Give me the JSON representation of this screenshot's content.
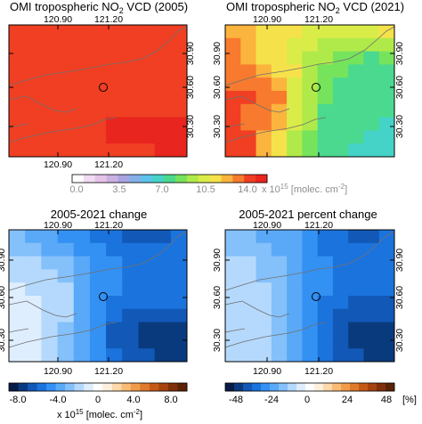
{
  "panels": [
    {
      "id": "no2-2005",
      "title_pre": "OMI tropospheric NO",
      "title_sub": "2",
      "title_post": " VCD (2005)",
      "grid": [
        [
          16,
          16,
          16,
          16,
          16,
          16,
          16,
          16,
          16,
          16,
          16
        ],
        [
          16,
          16,
          16,
          16,
          16,
          16,
          16,
          16,
          16,
          16,
          16
        ],
        [
          16,
          16,
          16,
          16,
          16,
          16,
          16,
          16,
          16,
          16,
          16
        ],
        [
          16,
          16,
          16,
          16,
          16,
          16,
          16,
          16,
          16,
          16,
          16
        ],
        [
          16,
          16,
          16,
          16,
          16,
          16,
          16,
          16,
          16,
          16,
          16
        ],
        [
          16,
          16,
          16,
          16,
          16,
          16,
          16,
          16,
          16,
          16,
          16
        ],
        [
          16,
          16,
          16,
          16,
          16,
          16,
          16,
          16,
          16,
          16,
          16
        ],
        [
          16,
          16,
          16,
          16,
          16,
          16,
          17,
          17,
          17,
          17,
          17
        ],
        [
          16,
          16,
          16,
          16,
          16,
          16,
          17,
          17,
          17,
          17,
          17
        ],
        [
          16,
          16,
          16,
          16,
          16,
          16,
          16,
          16,
          16,
          17,
          17
        ]
      ]
    },
    {
      "id": "no2-2021",
      "title_pre": "OMI tropospheric NO",
      "title_sub": "2",
      "title_post": " VCD (2021)",
      "grid": [
        [
          14,
          14,
          13,
          13,
          13,
          12,
          12,
          12,
          12,
          12,
          13
        ],
        [
          15,
          14,
          13,
          13,
          12,
          12,
          11,
          11,
          11,
          11,
          11
        ],
        [
          15,
          14,
          13,
          13,
          12,
          11,
          11,
          10,
          10,
          9,
          10
        ],
        [
          15,
          15,
          14,
          13,
          13,
          11,
          10,
          10,
          9,
          9,
          9
        ],
        [
          15,
          15,
          15,
          14,
          12,
          11,
          10,
          9,
          9,
          9,
          9
        ],
        [
          16,
          16,
          15,
          15,
          12,
          11,
          10,
          9,
          9,
          9,
          9
        ],
        [
          16,
          15,
          15,
          14,
          12,
          11,
          9,
          9,
          9,
          9,
          9
        ],
        [
          16,
          15,
          15,
          14,
          12,
          11,
          9,
          9,
          9,
          9,
          8
        ],
        [
          16,
          16,
          14,
          13,
          11,
          10,
          9,
          9,
          9,
          8,
          8
        ],
        [
          16,
          16,
          14,
          13,
          11,
          10,
          9,
          9,
          8,
          8,
          8
        ]
      ]
    },
    {
      "id": "change",
      "title": "2005-2021 change",
      "grid": [
        [
          -3.5,
          -4,
          -4.5,
          -5,
          -5,
          -6,
          -6.5,
          -7,
          -7,
          -7,
          -6.5
        ],
        [
          -3,
          -3.5,
          -4,
          -4.5,
          -5,
          -5.5,
          -6,
          -6.5,
          -6.5,
          -6,
          -6
        ],
        [
          -2,
          -2.5,
          -3,
          -3.5,
          -4,
          -5,
          -5.5,
          -6,
          -6,
          -6,
          -6
        ],
        [
          -2,
          -2,
          -2.5,
          -3,
          -4,
          -5,
          -5.5,
          -6,
          -6,
          -6,
          -6
        ],
        [
          -1.5,
          -2,
          -2,
          -2.5,
          -4,
          -5,
          -5.5,
          -6,
          -6,
          -6,
          -6
        ],
        [
          -1.5,
          -1.5,
          -2,
          -2.5,
          -4,
          -5,
          -6,
          -6.5,
          -6.5,
          -6.5,
          -6.5
        ],
        [
          -1.5,
          -1.5,
          -2,
          -2.5,
          -4,
          -5,
          -6.5,
          -7,
          -7,
          -7,
          -7
        ],
        [
          -1.5,
          -1.5,
          -2.5,
          -3,
          -4.5,
          -5.5,
          -7,
          -7.5,
          -8,
          -8,
          -8
        ],
        [
          -1.5,
          -1.5,
          -2.5,
          -3,
          -4.5,
          -5.5,
          -7,
          -7.5,
          -8,
          -8,
          -8
        ],
        [
          -1.5,
          -1.5,
          -2.5,
          -3,
          -4.5,
          -5.5,
          -6.5,
          -7,
          -7.5,
          -8,
          -8
        ]
      ]
    },
    {
      "id": "percent-change",
      "title": "2005-2021 percent change",
      "grid": [
        [
          -18,
          -20,
          -24,
          -26,
          -28,
          -33,
          -36,
          -40,
          -42,
          -44,
          -40
        ],
        [
          -16,
          -18,
          -22,
          -25,
          -28,
          -32,
          -35,
          -38,
          -40,
          -40,
          -38
        ],
        [
          -12,
          -14,
          -18,
          -22,
          -25,
          -30,
          -33,
          -36,
          -38,
          -38,
          -36
        ],
        [
          -12,
          -12,
          -16,
          -20,
          -24,
          -30,
          -34,
          -37,
          -38,
          -38,
          -38
        ],
        [
          -10,
          -12,
          -14,
          -18,
          -24,
          -30,
          -34,
          -38,
          -40,
          -40,
          -40
        ],
        [
          -10,
          -10,
          -12,
          -16,
          -24,
          -30,
          -36,
          -40,
          -42,
          -42,
          -42
        ],
        [
          -10,
          -10,
          -12,
          -16,
          -24,
          -32,
          -38,
          -44,
          -46,
          -46,
          -46
        ],
        [
          -10,
          -10,
          -14,
          -18,
          -26,
          -34,
          -40,
          -46,
          -48,
          -48,
          -48
        ],
        [
          -10,
          -10,
          -14,
          -18,
          -26,
          -34,
          -40,
          -46,
          -48,
          -48,
          -48
        ],
        [
          -10,
          -10,
          -14,
          -18,
          -26,
          -34,
          -40,
          -44,
          -46,
          -48,
          -48
        ]
      ]
    }
  ],
  "axes": {
    "lon_ticks": [
      "120.90",
      "121.20"
    ],
    "lat_ticks": [
      "30.90",
      "30.60",
      "30.30"
    ]
  },
  "colorbars": {
    "top": {
      "ticks": [
        "0.0",
        "3.5",
        "7.0",
        "10.5",
        "14.0"
      ],
      "unit_prefix": "x 10",
      "unit_exp": "15",
      "unit_mid": " [molec. cm",
      "unit_exp2": "-2",
      "unit_end": "]",
      "range": [
        0,
        17.5
      ],
      "palette": [
        "#ffffff",
        "#f1dcf1",
        "#e5c3e8",
        "#cab1e2",
        "#a9a4e1",
        "#84b0ea",
        "#5cc3ea",
        "#45d3c8",
        "#4ad98e",
        "#76e35c",
        "#b0ea4a",
        "#daec48",
        "#f5e24a",
        "#fbb43e",
        "#f77a2e",
        "#f03f22",
        "#e8251e"
      ]
    },
    "bottom_left": {
      "ticks": [
        "-8.0",
        "-4.0",
        "0",
        "4.0",
        "8.0"
      ],
      "unit_prefix": "x 10",
      "unit_exp": "15",
      "unit_mid": " [molec. cm",
      "unit_exp2": "-2",
      "unit_end": "]",
      "range": [
        -10,
        10
      ]
    },
    "bottom_right": {
      "ticks": [
        "-48",
        "-24",
        "0",
        "24",
        "48"
      ],
      "unit": "[%]",
      "range": [
        -60,
        60
      ]
    },
    "diverging_palette": [
      "#061c47",
      "#0a3a7e",
      "#1258b6",
      "#1b73dd",
      "#3391f3",
      "#5aa9f8",
      "#84c0fa",
      "#b4d9fd",
      "#deeefe",
      "#ffffff",
      "#fff0de",
      "#fdd9ab",
      "#f8bc76",
      "#f09c4b",
      "#de7a2b",
      "#c55a18",
      "#a5420f",
      "#7f2f09",
      "#5a2106"
    ]
  }
}
